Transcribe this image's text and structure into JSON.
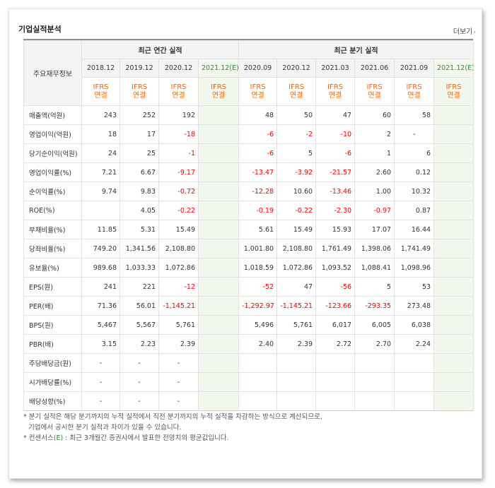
{
  "panel": {
    "title": "기업실적분석",
    "more_label": "더보기",
    "more_icon": "chevron-right-icon"
  },
  "table": {
    "row_header_label": "주요재무정보",
    "groups": {
      "annual": "최근 연간 실적",
      "quarterly": "최근 분기 실적"
    },
    "annual_periods": [
      "2018.12",
      "2019.12",
      "2020.12",
      "2021.12"
    ],
    "quarterly_periods": [
      "2020.09",
      "2020.12",
      "2021.03",
      "2021.06",
      "2021.09",
      "2021.12"
    ],
    "estimate_marker": "(E)",
    "ifrs_line1": "IFRS",
    "ifrs_line2": "연결",
    "rows": [
      {
        "label": "매출액(억원)",
        "annual": [
          "243",
          "252",
          "192",
          ""
        ],
        "quarterly": [
          "48",
          "50",
          "47",
          "60",
          "58",
          ""
        ]
      },
      {
        "label": "영업이익(억원)",
        "annual": [
          "18",
          "17",
          "-18",
          ""
        ],
        "quarterly": [
          "-6",
          "-2",
          "-10",
          "2",
          "-",
          ""
        ]
      },
      {
        "label": "당기순이익(억원)",
        "annual": [
          "24",
          "25",
          "-1",
          ""
        ],
        "quarterly": [
          "-6",
          "5",
          "-6",
          "1",
          "6",
          ""
        ]
      },
      {
        "label": "영업이익률(%)",
        "annual": [
          "7.21",
          "6.67",
          "-9.17",
          ""
        ],
        "quarterly": [
          "-13.47",
          "-3.92",
          "-21.57",
          "2.60",
          "0.12",
          ""
        ]
      },
      {
        "label": "순이익률(%)",
        "annual": [
          "9.74",
          "9.83",
          "-0.72",
          ""
        ],
        "quarterly": [
          "-12.28",
          "10.60",
          "-13.46",
          "1.00",
          "10.32",
          ""
        ]
      },
      {
        "label": "ROE(%)",
        "annual": [
          "",
          "4.05",
          "-0.22",
          ""
        ],
        "quarterly": [
          "-0.19",
          "-0.22",
          "-2.30",
          "-0.97",
          "0.87",
          ""
        ]
      },
      {
        "label": "부채비율(%)",
        "annual": [
          "11.85",
          "5.31",
          "15.49",
          ""
        ],
        "quarterly": [
          "5.61",
          "15.49",
          "15.93",
          "17.07",
          "16.44",
          ""
        ]
      },
      {
        "label": "당좌비율(%)",
        "annual": [
          "749.20",
          "1,341.56",
          "2,108.80",
          ""
        ],
        "quarterly": [
          "1,001.80",
          "2,108.80",
          "1,761.49",
          "1,398.06",
          "1,741.49",
          ""
        ]
      },
      {
        "label": "유보율(%)",
        "annual": [
          "989.68",
          "1,033.33",
          "1,072.86",
          ""
        ],
        "quarterly": [
          "1,018.59",
          "1,072.86",
          "1,093.52",
          "1,088.41",
          "1,098.96",
          ""
        ]
      },
      {
        "label": "EPS(원)",
        "annual": [
          "241",
          "221",
          "-12",
          ""
        ],
        "quarterly": [
          "-52",
          "47",
          "-56",
          "5",
          "53",
          ""
        ]
      },
      {
        "label": "PER(배)",
        "annual": [
          "71.36",
          "56.01",
          "-1,145.21",
          ""
        ],
        "quarterly": [
          "-1,292.97",
          "-1,145.21",
          "-123.66",
          "-293.35",
          "273.48",
          ""
        ]
      },
      {
        "label": "BPS(원)",
        "annual": [
          "5,467",
          "5,567",
          "5,761",
          ""
        ],
        "quarterly": [
          "5,496",
          "5,761",
          "6,017",
          "6,005",
          "6,038",
          ""
        ]
      },
      {
        "label": "PBR(배)",
        "annual": [
          "3.15",
          "2.23",
          "2.39",
          ""
        ],
        "quarterly": [
          "2.40",
          "2.39",
          "2.72",
          "2.70",
          "2.24",
          ""
        ]
      },
      {
        "label": "주당배당금(원)",
        "annual": [
          "-",
          "-",
          "-",
          ""
        ],
        "quarterly": [
          "",
          "",
          "",
          "",
          "",
          ""
        ]
      },
      {
        "label": "시가배당률(%)",
        "annual": [
          "-",
          "-",
          "-",
          ""
        ],
        "quarterly": [
          "",
          "",
          "",
          "",
          "",
          ""
        ]
      },
      {
        "label": "배당성향(%)",
        "annual": [
          "-",
          "-",
          "-",
          ""
        ],
        "quarterly": [
          "",
          "",
          "",
          "",
          "",
          ""
        ]
      }
    ],
    "group_start_rows": [
      0,
      3,
      6,
      9,
      13
    ]
  },
  "notes": {
    "line1": "* 분기 실적은 해당 분기까지의 누적 실적에서 직전 분기까지의 누적 실적을 차감하는 방식으로 계산되므로,",
    "line2": "기업에서 공시한 분기 실적과 차이가 있을 수 있습니다.",
    "line3_prefix": "* 컨센서스",
    "line3_marker": "(E)",
    "line3_suffix": " : 최근 3개월간 증권사에서 발표한 전망치의 평균값입니다."
  },
  "colors": {
    "negative": "#ff0000",
    "ifrs": "#ff6300",
    "estimate_bg": "#f2f8ee",
    "estimate_marker": "#2c8d2c"
  }
}
